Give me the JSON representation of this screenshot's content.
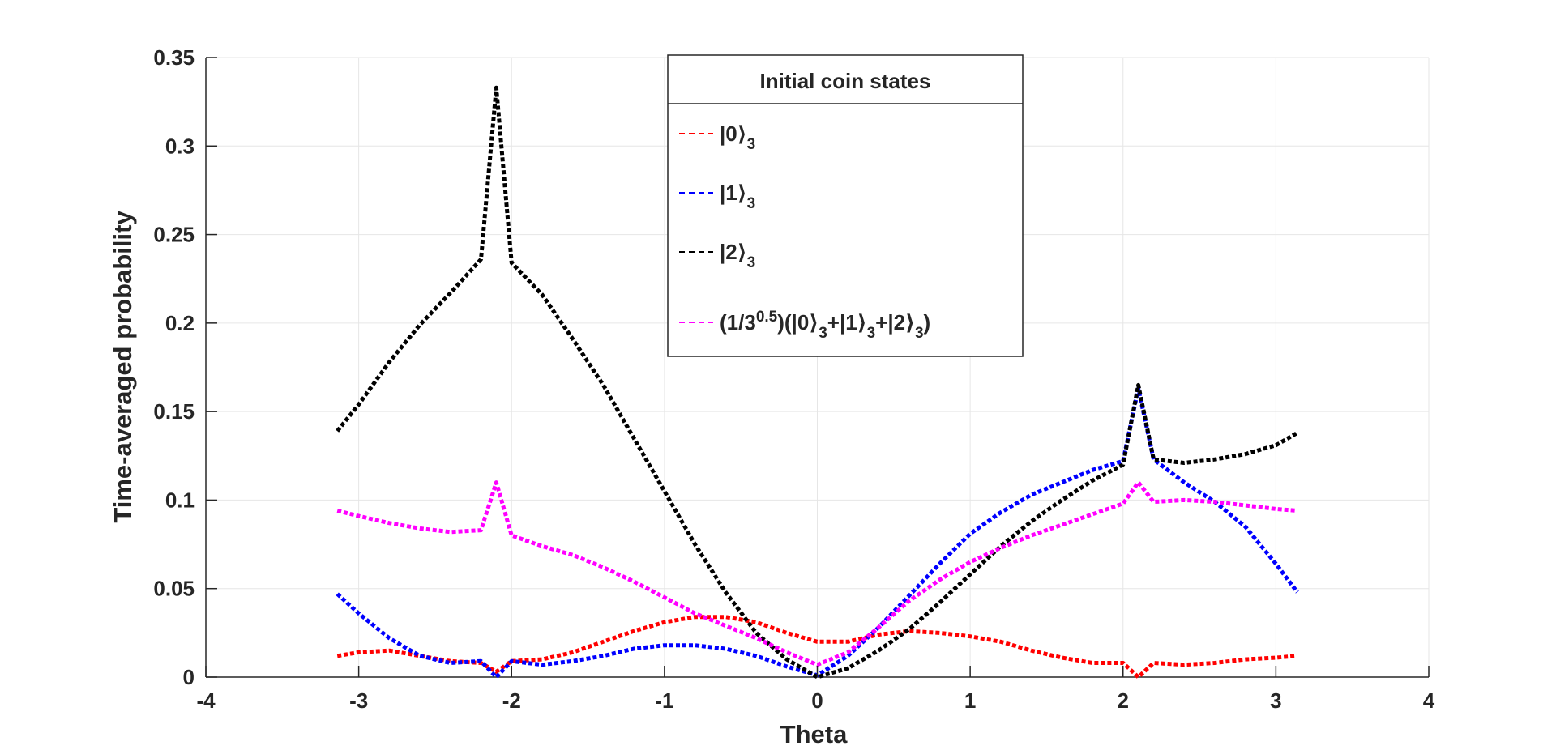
{
  "chart_data": {
    "type": "line",
    "title": "",
    "xlabel": "Theta",
    "ylabel": "Time-averaged probability",
    "xlim": [
      -4,
      4
    ],
    "ylim": [
      0,
      0.35
    ],
    "xticks": [
      -4,
      -3,
      -2,
      -1,
      0,
      1,
      2,
      3,
      4
    ],
    "xtick_labels": [
      "-4",
      "-3",
      "-2",
      "-1",
      "0",
      "1",
      "2",
      "3",
      "4"
    ],
    "yticks": [
      0,
      0.05,
      0.1,
      0.15,
      0.2,
      0.25,
      0.3,
      0.35
    ],
    "ytick_labels": [
      "0",
      "0.05",
      "0.1",
      "0.15",
      "0.2",
      "0.25",
      "0.3",
      "0.35"
    ],
    "grid": true,
    "legend": {
      "title": "Initial coin states",
      "placement": "top-center"
    },
    "series": [
      {
        "name": "|0⟩3",
        "label_parts": [
          "|0",
          "⟩",
          "3"
        ],
        "color": "#ff0000",
        "x": [
          -3.14,
          -3.0,
          -2.8,
          -2.6,
          -2.4,
          -2.2,
          -2.1,
          -2.0,
          -1.8,
          -1.6,
          -1.4,
          -1.2,
          -1.0,
          -0.8,
          -0.6,
          -0.4,
          -0.2,
          0.0,
          0.2,
          0.4,
          0.6,
          0.8,
          1.0,
          1.2,
          1.4,
          1.6,
          1.8,
          2.0,
          2.1,
          2.2,
          2.4,
          2.6,
          2.8,
          3.0,
          3.14
        ],
        "y": [
          0.012,
          0.014,
          0.015,
          0.012,
          0.009,
          0.008,
          0.003,
          0.009,
          0.01,
          0.014,
          0.02,
          0.026,
          0.031,
          0.034,
          0.034,
          0.031,
          0.025,
          0.02,
          0.02,
          0.024,
          0.026,
          0.025,
          0.023,
          0.02,
          0.015,
          0.011,
          0.008,
          0.008,
          0.0,
          0.008,
          0.007,
          0.008,
          0.01,
          0.011,
          0.012
        ]
      },
      {
        "name": "|1⟩3",
        "label_parts": [
          "|1",
          "⟩",
          "3"
        ],
        "color": "#0000ff",
        "x": [
          -3.14,
          -3.0,
          -2.8,
          -2.6,
          -2.4,
          -2.2,
          -2.1,
          -2.0,
          -1.8,
          -1.6,
          -1.4,
          -1.2,
          -1.0,
          -0.8,
          -0.6,
          -0.4,
          -0.2,
          0.0,
          0.2,
          0.4,
          0.6,
          0.8,
          1.0,
          1.2,
          1.4,
          1.6,
          1.8,
          2.0,
          2.1,
          2.2,
          2.4,
          2.6,
          2.8,
          3.0,
          3.14
        ],
        "y": [
          0.047,
          0.036,
          0.022,
          0.012,
          0.008,
          0.009,
          0.0,
          0.009,
          0.007,
          0.009,
          0.012,
          0.016,
          0.018,
          0.018,
          0.016,
          0.012,
          0.006,
          0.001,
          0.012,
          0.028,
          0.046,
          0.064,
          0.081,
          0.093,
          0.103,
          0.11,
          0.117,
          0.122,
          0.163,
          0.123,
          0.11,
          0.099,
          0.085,
          0.064,
          0.048
        ]
      },
      {
        "name": "|2⟩3",
        "label_parts": [
          "|2",
          "⟩",
          "3"
        ],
        "color": "#000000",
        "x": [
          -3.14,
          -3.0,
          -2.8,
          -2.6,
          -2.4,
          -2.2,
          -2.1,
          -2.0,
          -1.8,
          -1.6,
          -1.4,
          -1.2,
          -1.0,
          -0.8,
          -0.6,
          -0.4,
          -0.2,
          0.0,
          0.2,
          0.4,
          0.6,
          0.8,
          1.0,
          1.2,
          1.4,
          1.6,
          1.8,
          2.0,
          2.1,
          2.2,
          2.4,
          2.6,
          2.8,
          3.0,
          3.14
        ],
        "y": [
          0.139,
          0.154,
          0.178,
          0.199,
          0.217,
          0.236,
          0.333,
          0.234,
          0.216,
          0.191,
          0.165,
          0.135,
          0.105,
          0.075,
          0.048,
          0.025,
          0.01,
          0.0,
          0.005,
          0.015,
          0.027,
          0.042,
          0.058,
          0.074,
          0.088,
          0.1,
          0.111,
          0.12,
          0.165,
          0.123,
          0.121,
          0.123,
          0.126,
          0.131,
          0.138
        ]
      },
      {
        "name": "(1/3^0.5)(|0⟩3+|1⟩3+|2⟩3)",
        "label_parts": [
          "(1/3",
          "0.5",
          ")(|0",
          "⟩",
          "3",
          "+|1",
          "⟩",
          "3",
          "+|2",
          "⟩",
          "3",
          ")"
        ],
        "color": "#ff00ff",
        "x": [
          -3.14,
          -3.0,
          -2.8,
          -2.6,
          -2.4,
          -2.2,
          -2.1,
          -2.0,
          -1.8,
          -1.6,
          -1.4,
          -1.2,
          -1.0,
          -0.8,
          -0.6,
          -0.4,
          -0.2,
          0.0,
          0.2,
          0.4,
          0.6,
          0.8,
          1.0,
          1.2,
          1.4,
          1.6,
          1.8,
          2.0,
          2.1,
          2.2,
          2.4,
          2.6,
          2.8,
          3.0,
          3.14
        ],
        "y": [
          0.094,
          0.091,
          0.087,
          0.084,
          0.082,
          0.083,
          0.11,
          0.08,
          0.074,
          0.069,
          0.062,
          0.054,
          0.045,
          0.036,
          0.029,
          0.022,
          0.014,
          0.007,
          0.014,
          0.028,
          0.043,
          0.055,
          0.065,
          0.073,
          0.08,
          0.086,
          0.092,
          0.098,
          0.11,
          0.099,
          0.1,
          0.099,
          0.097,
          0.095,
          0.094
        ]
      }
    ]
  }
}
